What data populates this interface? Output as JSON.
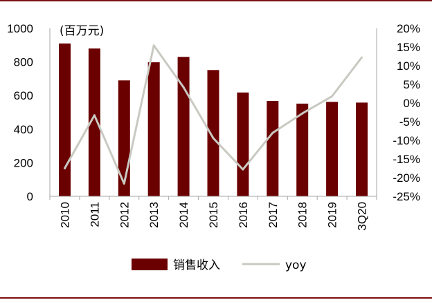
{
  "colors": {
    "bar": "#6b0000",
    "line": "#c9c9c2",
    "axis": "#a6a6a6",
    "rule": "#7a0f0f"
  },
  "chart_data": {
    "type": "bar",
    "title": "",
    "ylabel": "(百万元)",
    "categories": [
      "2010",
      "2011",
      "2012",
      "2013",
      "2014",
      "2015",
      "2016",
      "2017",
      "2018",
      "2019",
      "3Q20"
    ],
    "ylim": [
      0,
      1000
    ],
    "yticks": [
      "0",
      "200",
      "400",
      "600",
      "800",
      "1000"
    ],
    "y2lim": [
      -25,
      20
    ],
    "y2ticks": [
      "-25%",
      "-20%",
      "-15%",
      "-10%",
      "-5%",
      "0%",
      "5%",
      "10%",
      "15%",
      "20%"
    ],
    "grid": false,
    "legend_position": "bottom",
    "series": [
      {
        "name": "销售收入",
        "type": "bar",
        "axis": "left",
        "values": [
          910,
          880,
          690,
          798,
          830,
          752,
          618,
          568,
          552,
          562,
          558
        ]
      },
      {
        "name": "yoy",
        "type": "line",
        "axis": "right",
        "values": [
          -17.5,
          -3.3,
          -21.6,
          15.4,
          4.2,
          -9.4,
          -17.8,
          -8.0,
          -2.8,
          1.8,
          12.2
        ]
      }
    ]
  }
}
